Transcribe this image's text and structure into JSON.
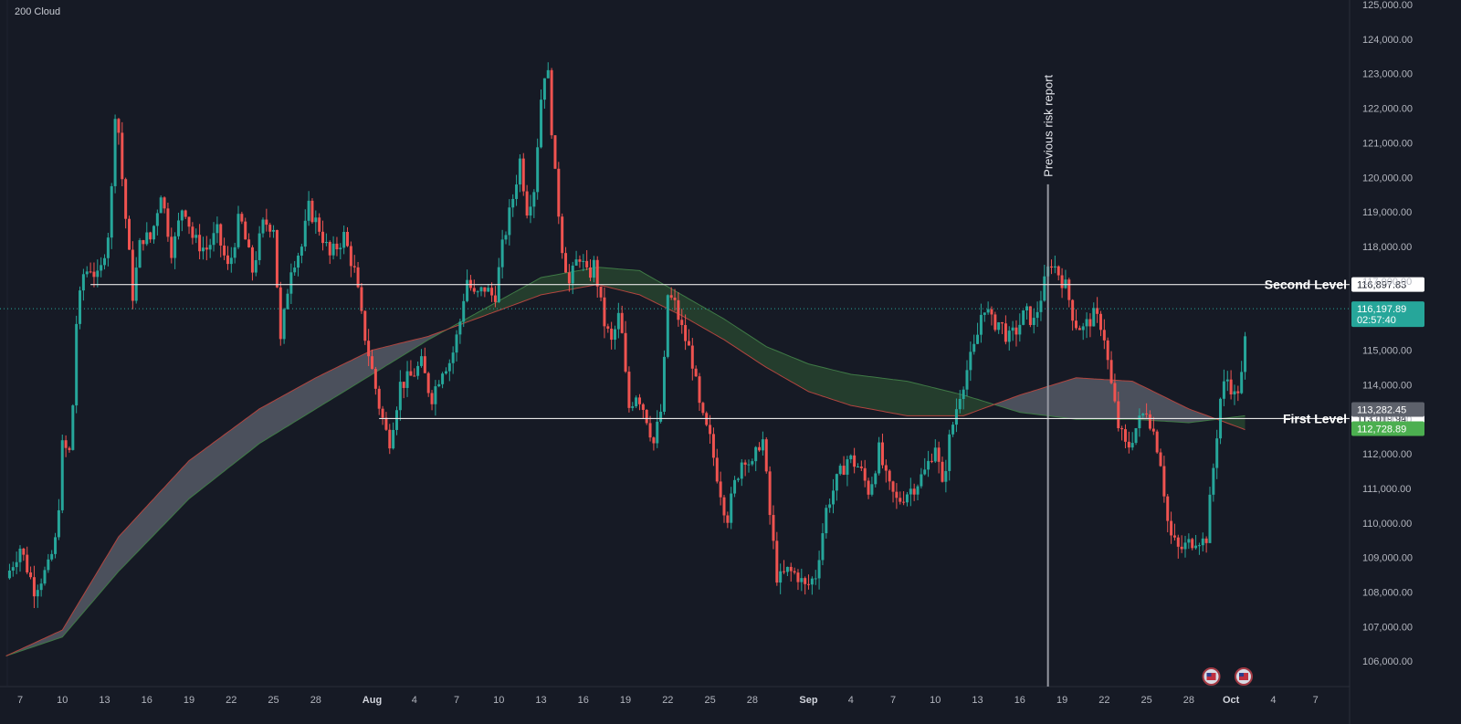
{
  "indicator_label": "200 Cloud",
  "colors": {
    "background": "#161a25",
    "up": "#26a69a",
    "down": "#ef5350",
    "cloud_bull": "#2a4a30",
    "cloud_bear": "#555a66",
    "level_line": "#e6e6e6",
    "price_line": "#26a69a"
  },
  "chart_data": {
    "type": "candlestick",
    "ylim": [
      105500,
      125000
    ],
    "y_ticks": [
      "106,000.00",
      "107,000.00",
      "108,000.00",
      "109,000.00",
      "110,000.00",
      "111,000.00",
      "112,000.00",
      "113,000.00",
      "114,000.00",
      "115,000.00",
      "116,000.00",
      "117,000.00",
      "118,000.00",
      "119,000.00",
      "120,000.00",
      "121,000.00",
      "122,000.00",
      "123,000.00",
      "124,000.00",
      "125,000.00"
    ],
    "x_labels": [
      {
        "label": "7",
        "day": 7,
        "month": false
      },
      {
        "label": "10",
        "day": 10,
        "month": false
      },
      {
        "label": "13",
        "day": 13,
        "month": false
      },
      {
        "label": "16",
        "day": 16,
        "month": false
      },
      {
        "label": "19",
        "day": 19,
        "month": false
      },
      {
        "label": "22",
        "day": 22,
        "month": false
      },
      {
        "label": "25",
        "day": 25,
        "month": false
      },
      {
        "label": "28",
        "day": 28,
        "month": false
      },
      {
        "label": "Aug",
        "day": 32,
        "month": true
      },
      {
        "label": "4",
        "day": 35,
        "month": false
      },
      {
        "label": "7",
        "day": 38,
        "month": false
      },
      {
        "label": "10",
        "day": 41,
        "month": false
      },
      {
        "label": "13",
        "day": 44,
        "month": false
      },
      {
        "label": "16",
        "day": 47,
        "month": false
      },
      {
        "label": "19",
        "day": 50,
        "month": false
      },
      {
        "label": "22",
        "day": 53,
        "month": false
      },
      {
        "label": "25",
        "day": 56,
        "month": false
      },
      {
        "label": "28",
        "day": 59,
        "month": false
      },
      {
        "label": "Sep",
        "day": 63,
        "month": true
      },
      {
        "label": "4",
        "day": 66,
        "month": false
      },
      {
        "label": "7",
        "day": 69,
        "month": false
      },
      {
        "label": "10",
        "day": 72,
        "month": false
      },
      {
        "label": "13",
        "day": 75,
        "month": false
      },
      {
        "label": "16",
        "day": 78,
        "month": false
      },
      {
        "label": "19",
        "day": 81,
        "month": false
      },
      {
        "label": "22",
        "day": 84,
        "month": false
      },
      {
        "label": "25",
        "day": 87,
        "month": false
      },
      {
        "label": "28",
        "day": 90,
        "month": false
      },
      {
        "label": "Oct",
        "day": 93,
        "month": true
      },
      {
        "label": "4",
        "day": 96,
        "month": false
      },
      {
        "label": "7",
        "day": 99,
        "month": false
      }
    ],
    "price_path": [
      [
        6,
        108400
      ],
      [
        7,
        109300
      ],
      [
        8,
        108100
      ],
      [
        9,
        108700
      ],
      [
        9.6,
        109600
      ],
      [
        10,
        112200
      ],
      [
        10.6,
        112000
      ],
      [
        11,
        115800
      ],
      [
        11.5,
        117200
      ],
      [
        12,
        117400
      ],
      [
        12.6,
        117000
      ],
      [
        13,
        117900
      ],
      [
        13.4,
        118700
      ],
      [
        13.8,
        122400
      ],
      [
        14.3,
        119700
      ],
      [
        15,
        116600
      ],
      [
        15.6,
        118300
      ],
      [
        16.3,
        118200
      ],
      [
        17,
        119600
      ],
      [
        17.8,
        117800
      ],
      [
        18.6,
        119300
      ],
      [
        19.3,
        118200
      ],
      [
        20.2,
        117900
      ],
      [
        21,
        118400
      ],
      [
        21.8,
        117300
      ],
      [
        22.6,
        118900
      ],
      [
        23.5,
        117300
      ],
      [
        24.3,
        118700
      ],
      [
        25,
        118600
      ],
      [
        25.5,
        115200
      ],
      [
        26.2,
        117400
      ],
      [
        27,
        118000
      ],
      [
        27.5,
        119100
      ],
      [
        28.3,
        118500
      ],
      [
        29,
        117700
      ],
      [
        30,
        118300
      ],
      [
        30.8,
        117200
      ],
      [
        31.3,
        115800
      ],
      [
        31.8,
        114800
      ],
      [
        32.5,
        113400
      ],
      [
        33.2,
        112300
      ],
      [
        34,
        114000
      ],
      [
        34.7,
        114200
      ],
      [
        35.5,
        114600
      ],
      [
        36.2,
        113600
      ],
      [
        37,
        114500
      ],
      [
        37.6,
        114700
      ],
      [
        38.2,
        115700
      ],
      [
        38.7,
        117100
      ],
      [
        39.3,
        116500
      ],
      [
        40,
        116800
      ],
      [
        40.7,
        116500
      ],
      [
        41.3,
        118100
      ],
      [
        41.9,
        119200
      ],
      [
        42.5,
        120500
      ],
      [
        43,
        119100
      ],
      [
        43.5,
        119700
      ],
      [
        44,
        122300
      ],
      [
        44.4,
        123500
      ],
      [
        45,
        120000
      ],
      [
        45.5,
        118000
      ],
      [
        46,
        116900
      ],
      [
        46.7,
        117800
      ],
      [
        47.3,
        117100
      ],
      [
        47.8,
        117500
      ],
      [
        48.4,
        115900
      ],
      [
        49,
        115200
      ],
      [
        49.6,
        116100
      ],
      [
        50.2,
        113300
      ],
      [
        50.8,
        113800
      ],
      [
        51.4,
        113200
      ],
      [
        52,
        112300
      ],
      [
        52.6,
        113400
      ],
      [
        53,
        116600
      ],
      [
        53.5,
        116300
      ],
      [
        54,
        115600
      ],
      [
        54.7,
        114800
      ],
      [
        55.3,
        113200
      ],
      [
        56,
        112400
      ],
      [
        56.6,
        111200
      ],
      [
        57.2,
        110100
      ],
      [
        57.8,
        111200
      ],
      [
        58.4,
        112000
      ],
      [
        59,
        111600
      ],
      [
        59.7,
        112600
      ],
      [
        60.2,
        110400
      ],
      [
        60.8,
        108300
      ],
      [
        61.5,
        108600
      ],
      [
        62.2,
        108500
      ],
      [
        62.8,
        108100
      ],
      [
        63.5,
        108500
      ],
      [
        64.3,
        110500
      ],
      [
        65,
        111200
      ],
      [
        65.8,
        111900
      ],
      [
        66.6,
        111600
      ],
      [
        67.3,
        110900
      ],
      [
        68,
        112100
      ],
      [
        68.6,
        111100
      ],
      [
        69.3,
        110600
      ],
      [
        70,
        110900
      ],
      [
        70.6,
        111100
      ],
      [
        71.3,
        111500
      ],
      [
        72,
        112300
      ],
      [
        72.5,
        111000
      ],
      [
        73,
        112400
      ],
      [
        73.7,
        113700
      ],
      [
        74.3,
        114500
      ],
      [
        74.9,
        115200
      ],
      [
        75.4,
        116400
      ],
      [
        76,
        115800
      ],
      [
        76.6,
        115800
      ],
      [
        77.2,
        115300
      ],
      [
        77.8,
        115600
      ],
      [
        78.4,
        116100
      ],
      [
        79,
        115800
      ],
      [
        79.6,
        116700
      ],
      [
        80.2,
        117600
      ],
      [
        80.8,
        117200
      ],
      [
        81.3,
        116800
      ],
      [
        81.9,
        115800
      ],
      [
        82.5,
        115600
      ],
      [
        83.2,
        116000
      ],
      [
        83.9,
        115700
      ],
      [
        84.4,
        114200
      ],
      [
        85,
        112800
      ],
      [
        85.6,
        112100
      ],
      [
        86.3,
        112800
      ],
      [
        87,
        113300
      ],
      [
        87.6,
        112500
      ],
      [
        88,
        111800
      ],
      [
        88.6,
        109700
      ],
      [
        89.3,
        109200
      ],
      [
        90,
        109400
      ],
      [
        90.6,
        109600
      ],
      [
        91.2,
        109400
      ],
      [
        91.8,
        111800
      ],
      [
        92.3,
        113800
      ],
      [
        92.8,
        114200
      ],
      [
        93.3,
        113600
      ],
      [
        93.8,
        114300
      ],
      [
        94.2,
        116198
      ]
    ],
    "cloud_boundary_a": [
      [
        6,
        106150
      ],
      [
        10,
        106700
      ],
      [
        14,
        108600
      ],
      [
        19,
        110700
      ],
      [
        24,
        112300
      ],
      [
        28,
        113300
      ],
      [
        32,
        114300
      ],
      [
        36,
        115300
      ],
      [
        40,
        116200
      ],
      [
        44,
        117100
      ],
      [
        48,
        117400
      ],
      [
        51,
        117300
      ],
      [
        54,
        116600
      ],
      [
        57,
        115900
      ],
      [
        60,
        115100
      ],
      [
        63,
        114600
      ],
      [
        66,
        114300
      ],
      [
        70,
        114100
      ],
      [
        74,
        113700
      ],
      [
        78,
        113200
      ],
      [
        82,
        113000
      ],
      [
        86,
        113000
      ],
      [
        90,
        112900
      ],
      [
        94,
        113100
      ]
    ],
    "cloud_boundary_b": [
      [
        6,
        106150
      ],
      [
        10,
        106900
      ],
      [
        14,
        109600
      ],
      [
        19,
        111800
      ],
      [
        24,
        113300
      ],
      [
        28,
        114200
      ],
      [
        32,
        115000
      ],
      [
        36,
        115400
      ],
      [
        40,
        116000
      ],
      [
        44,
        116600
      ],
      [
        48,
        116900
      ],
      [
        51,
        116600
      ],
      [
        54,
        116000
      ],
      [
        57,
        115300
      ],
      [
        60,
        114500
      ],
      [
        63,
        113800
      ],
      [
        66,
        113400
      ],
      [
        70,
        113100
      ],
      [
        74,
        113100
      ],
      [
        78,
        113700
      ],
      [
        82,
        114200
      ],
      [
        86,
        114100
      ],
      [
        90,
        113300
      ],
      [
        94,
        112700
      ]
    ],
    "levels": [
      {
        "name": "Second Level",
        "price": 116897.83,
        "price_label": "116,897.83",
        "start_day": 12
      },
      {
        "name": "First Level",
        "price": 113019.94,
        "price_label": "113,019.94",
        "start_day": 32.5
      }
    ],
    "price_tags": [
      {
        "price": 116197.89,
        "label": "116,197.89",
        "sublabel": "02:57:40",
        "bg": "#26a69a",
        "fg": "#ffffff"
      },
      {
        "price": 113282.45,
        "label": "113,282.45",
        "bg": "#5d616b",
        "fg": "#ffffff"
      },
      {
        "price": 112728.89,
        "label": "112,728.89",
        "bg": "#4caf50",
        "fg": "#ffffff"
      }
    ],
    "current_price": 116197.89,
    "event": {
      "label": "Previous risk report",
      "day": 80,
      "top_price": 119800
    },
    "event_markers": [
      {
        "day": 91.6
      },
      {
        "day": 93.9
      }
    ],
    "x_domain": [
      5.5,
      100
    ]
  }
}
